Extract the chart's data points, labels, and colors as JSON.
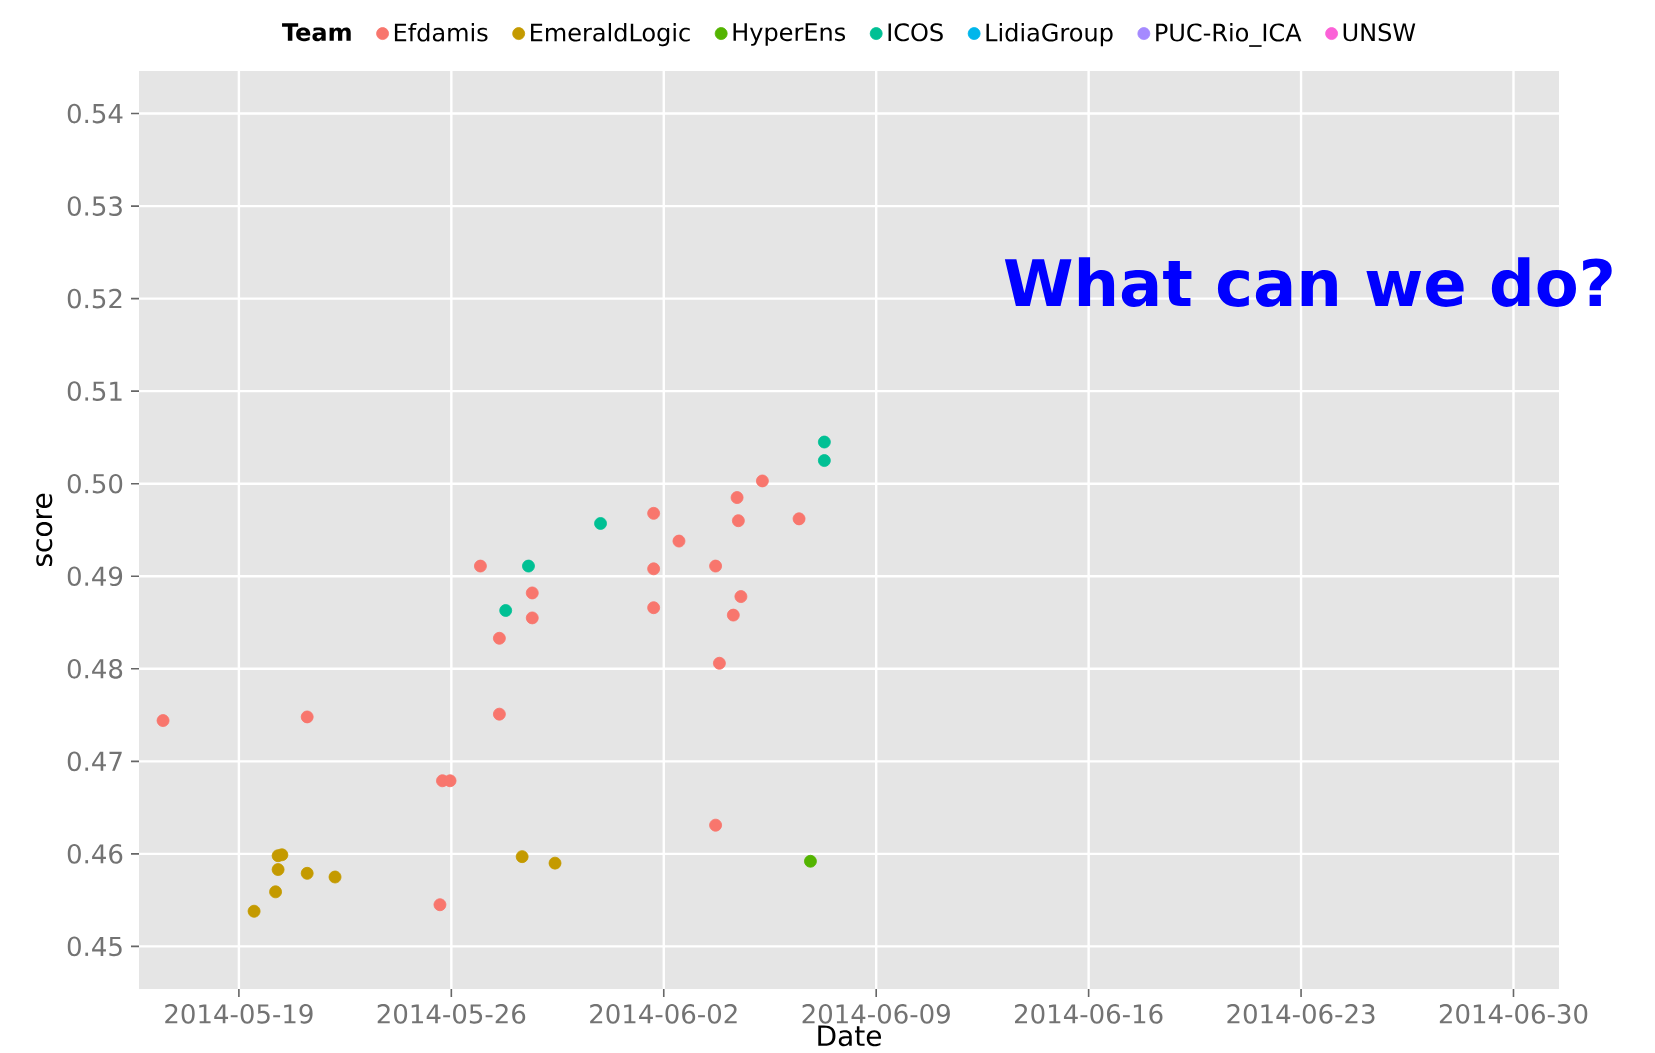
{
  "chart_data": {
    "type": "scatter",
    "xlabel": "Date",
    "ylabel": "score",
    "legend_title": "Team",
    "legend": "top",
    "grid": true,
    "marker": "circle",
    "xlim": [
      "2014-05-15T17:00",
      "2014-07-01T12:00"
    ],
    "xticks": [
      "2014-05-19",
      "2014-05-26",
      "2014-06-02",
      "2014-06-09",
      "2014-06-16",
      "2014-06-23",
      "2014-06-30"
    ],
    "ylim": [
      0.4454,
      0.5446
    ],
    "yticks": [
      0.45,
      0.46,
      0.47,
      0.48,
      0.49,
      {
        "value": 0.5,
        "label": "0.50"
      },
      0.51,
      0.52,
      0.53,
      0.54
    ],
    "annotations": [
      "What can we do?"
    ],
    "series": [
      {
        "name": "Efdamis",
        "color": "#F8766D",
        "x": [
          "2014-05-16T12:00",
          "2014-05-21T06:00",
          "2014-05-25T15:00",
          "2014-05-25T17:00",
          "2014-05-25T23:00",
          "2014-05-26T23:00",
          "2014-05-27T14:00",
          "2014-05-27T14:00",
          "2014-05-28T16:00",
          "2014-05-28T16:00",
          "2014-06-01T16:00",
          "2014-06-01T16:00",
          "2014-06-01T16:00",
          "2014-06-02T12:00",
          "2014-06-03T17:00",
          "2014-06-03T20:00",
          "2014-06-03T17:00",
          "2014-06-04T10:00",
          "2014-06-04T11:00",
          "2014-06-04T13:00",
          "2014-06-04T07:00",
          "2014-06-05T06:00",
          "2014-06-06T11:00"
        ],
        "values": [
          0.4744,
          0.4748,
          0.4545,
          0.4679,
          0.4679,
          0.4911,
          0.4833,
          0.4751,
          0.4882,
          0.4855,
          0.4968,
          0.4908,
          0.4866,
          0.4938,
          0.4911,
          0.4806,
          0.4631,
          0.4985,
          0.496,
          0.4878,
          0.4858,
          0.5003,
          0.4962
        ]
      },
      {
        "name": "EmeraldLogic",
        "color": "#C49A00",
        "x": [
          "2014-05-19T12:00",
          "2014-05-20T05:00",
          "2014-05-20T07:00",
          "2014-05-20T07:00",
          "2014-05-20T10:00",
          "2014-05-21T06:00",
          "2014-05-22T04:00",
          "2014-05-28T08:00",
          "2014-05-29T10:00"
        ],
        "values": [
          0.4538,
          0.4559,
          0.4583,
          0.4598,
          0.4599,
          0.4579,
          0.4575,
          0.4597,
          0.459
        ]
      },
      {
        "name": "HyperEns",
        "color": "#53B400",
        "x": [
          "2014-06-06T20:00"
        ],
        "values": [
          0.4592
        ]
      },
      {
        "name": "ICOS",
        "color": "#00C094",
        "x": [
          "2014-05-27T19:00",
          "2014-05-28T13:00",
          "2014-05-30T22:00",
          "2014-06-07T07:00",
          "2014-06-07T07:00"
        ],
        "values": [
          0.4863,
          0.4911,
          0.4957,
          0.5045,
          0.5025
        ]
      },
      {
        "name": "LidiaGroup",
        "color": "#00B6EB"
      },
      {
        "name": "PUC-Rio_ICA",
        "color": "#A58AFF"
      },
      {
        "name": "UNSW",
        "color": "#FB61D7"
      }
    ]
  }
}
